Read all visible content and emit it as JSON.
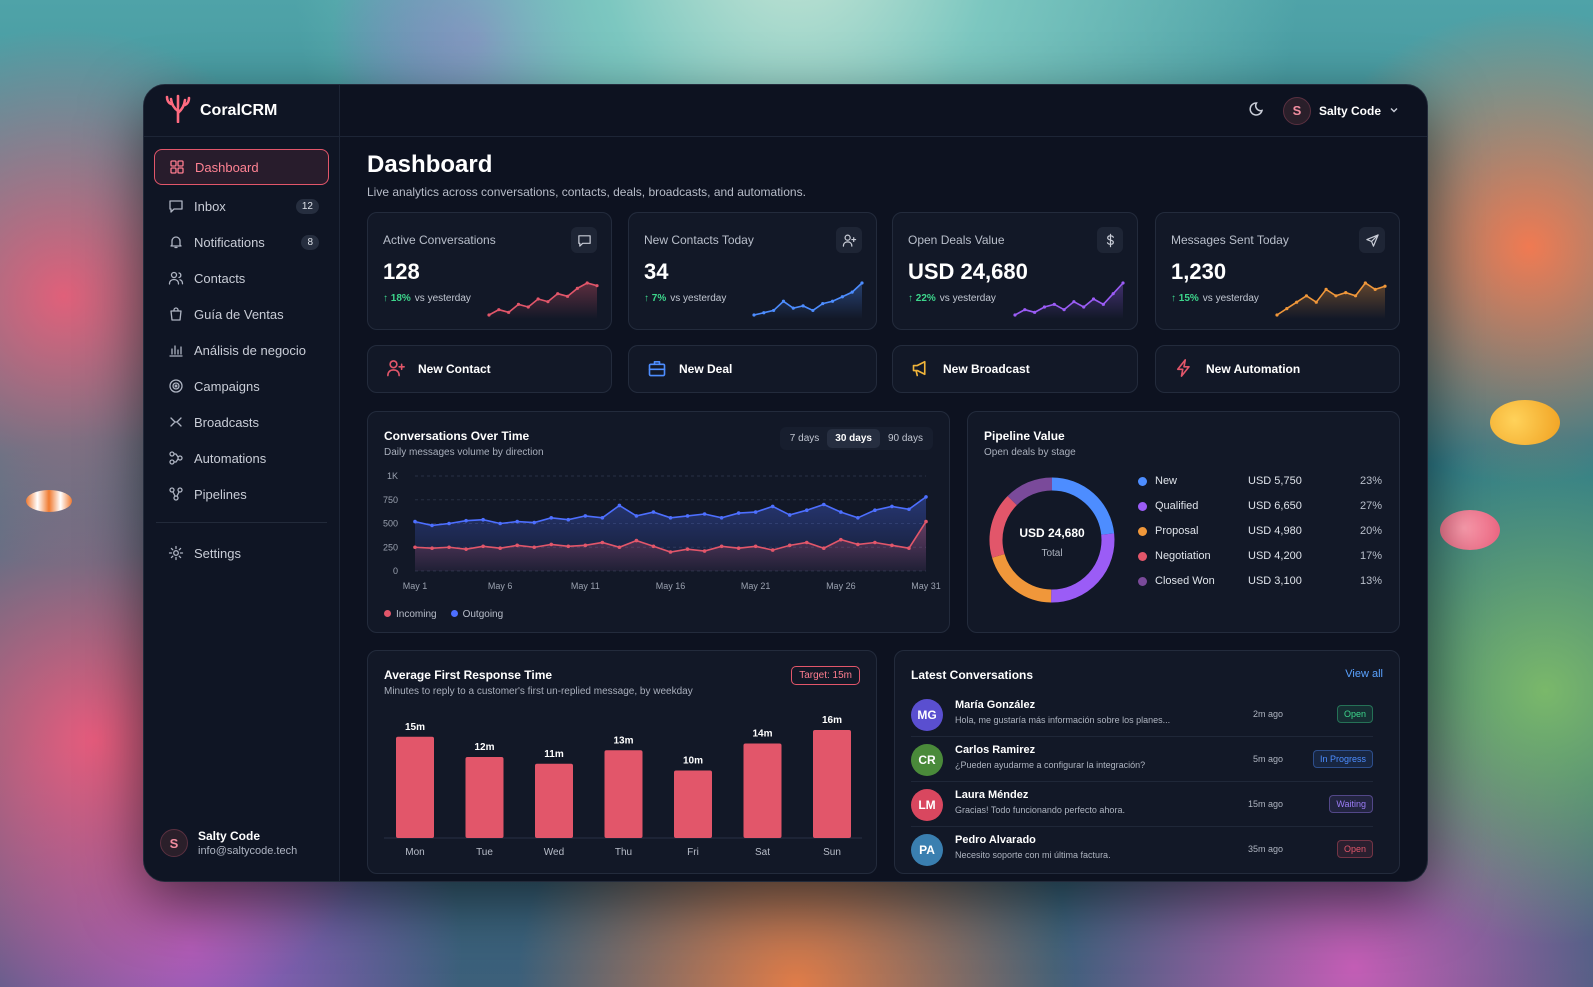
{
  "brand": {
    "name": "CoralCRM"
  },
  "sidebar": {
    "items": [
      {
        "label": "Dashboard",
        "active": true,
        "icon": "grid-icon"
      },
      {
        "label": "Inbox",
        "badge": "12",
        "icon": "message-icon"
      },
      {
        "label": "Notifications",
        "badge": "8",
        "icon": "bell-icon"
      },
      {
        "label": "Contacts",
        "icon": "users-icon"
      },
      {
        "label": "Guía de Ventas",
        "icon": "bag-icon"
      },
      {
        "label": "Análisis de negocio",
        "icon": "bar-chart-icon"
      },
      {
        "label": "Campaigns",
        "icon": "target-icon"
      },
      {
        "label": "Broadcasts",
        "icon": "broadcast-icon"
      },
      {
        "label": "Automations",
        "icon": "flow-icon"
      },
      {
        "label": "Pipelines",
        "icon": "pipeline-icon"
      }
    ],
    "settings_label": "Settings",
    "user": {
      "initial": "S",
      "name": "Salty Code",
      "email": "info@saltycode.tech"
    }
  },
  "topbar": {
    "user_initial": "S",
    "user_name": "Salty Code",
    "theme_icon": "moon-icon"
  },
  "page": {
    "title": "Dashboard",
    "subtitle": "Live analytics across conversations, contacts, deals, broadcasts, and automations."
  },
  "kpis": [
    {
      "label": "Active Conversations",
      "value": "128",
      "delta": "18%",
      "delta_text": "vs yesterday",
      "color": "#e2566a",
      "icon": "chat-icon",
      "spark": [
        3,
        4,
        3.5,
        5,
        4.5,
        6,
        5.5,
        7,
        6.5,
        8,
        9,
        8.5
      ]
    },
    {
      "label": "New Contacts Today",
      "value": "34",
      "delta": "7%",
      "delta_text": "vs yesterday",
      "color": "#4d8dff",
      "icon": "user-plus-icon",
      "spark": [
        2,
        2.5,
        3,
        5,
        3.5,
        4,
        3,
        4.5,
        5,
        6,
        7,
        9
      ]
    },
    {
      "label": "Open Deals Value",
      "value": "USD 24,680",
      "delta": "22%",
      "delta_text": "vs yesterday",
      "color": "#9b5cf6",
      "icon": "dollar-icon",
      "spark": [
        2,
        3,
        2.5,
        3.5,
        4,
        3,
        4.5,
        3.5,
        5,
        4,
        6,
        8
      ]
    },
    {
      "label": "Messages Sent Today",
      "value": "1,230",
      "delta": "15%",
      "delta_text": "vs yesterday",
      "color": "#f0973a",
      "icon": "send-icon",
      "spark": [
        2,
        3,
        4,
        5,
        4,
        6,
        5,
        5.5,
        5,
        7,
        6,
        6.5
      ]
    }
  ],
  "actions": [
    {
      "label": "New Contact",
      "icon": "user-plus-icon",
      "color": "#e2566a"
    },
    {
      "label": "New Deal",
      "icon": "briefcase-icon",
      "color": "#4d8dff"
    },
    {
      "label": "New Broadcast",
      "icon": "megaphone-icon",
      "color": "#f0b43a"
    },
    {
      "label": "New Automation",
      "icon": "bolt-icon",
      "color": "#e2566a"
    }
  ],
  "conversations_chart": {
    "title": "Conversations Over Time",
    "subtitle": "Daily messages volume by direction",
    "ranges": [
      "7 days",
      "30 days",
      "90 days"
    ],
    "selected_range": "30 days",
    "legend": [
      "Incoming",
      "Outgoing"
    ]
  },
  "pipeline": {
    "title": "Pipeline Value",
    "subtitle": "Open deals by stage",
    "total_value": "USD 24,680",
    "total_label": "Total"
  },
  "response": {
    "title": "Average First Response Time",
    "subtitle": "Minutes to reply to a customer's first un-replied message, by weekday",
    "target": "Target: 15m"
  },
  "latest": {
    "title": "Latest Conversations",
    "view_all": "View all",
    "rows": [
      {
        "initials": "MG",
        "name": "María González",
        "message": "Hola, me gustaría más información sobre los planes...",
        "time": "2m ago",
        "status": "Open",
        "avatar_color": "#5a4fd0",
        "status_color": "#3dd68c"
      },
      {
        "initials": "CR",
        "name": "Carlos Ramirez",
        "message": "¿Pueden ayudarme a configurar la integración?",
        "time": "5m ago",
        "status": "In Progress",
        "avatar_color": "#4a8a3a",
        "status_color": "#4d8dff"
      },
      {
        "initials": "LM",
        "name": "Laura Méndez",
        "message": "Gracias! Todo funcionando perfecto ahora.",
        "time": "15m ago",
        "status": "Waiting",
        "avatar_color": "#d9475f",
        "status_color": "#9b7cf6"
      },
      {
        "initials": "PA",
        "name": "Pedro Alvarado",
        "message": "Necesito soporte con mi última factura.",
        "time": "35m ago",
        "status": "Open",
        "avatar_color": "#3a7fb0",
        "status_color": "#e2566a"
      }
    ]
  },
  "chart_data": [
    {
      "type": "area",
      "title": "Conversations Over Time",
      "x": [
        "May 1",
        "May 2",
        "May 3",
        "May 4",
        "May 5",
        "May 6",
        "May 7",
        "May 8",
        "May 9",
        "May 10",
        "May 11",
        "May 12",
        "May 13",
        "May 14",
        "May 15",
        "May 16",
        "May 17",
        "May 18",
        "May 19",
        "May 20",
        "May 21",
        "May 22",
        "May 23",
        "May 24",
        "May 25",
        "May 26",
        "May 27",
        "May 28",
        "May 29",
        "May 30",
        "May 31"
      ],
      "x_tick_labels": [
        "May 1",
        "May 6",
        "May 11",
        "May 16",
        "May 21",
        "May 26",
        "May 31"
      ],
      "y_ticks": [
        "0",
        "250",
        "500",
        "750",
        "1K"
      ],
      "ylim": [
        0,
        1000
      ],
      "series": [
        {
          "name": "Incoming",
          "color": "#e2566a",
          "values": [
            250,
            240,
            250,
            230,
            260,
            240,
            270,
            250,
            280,
            260,
            270,
            300,
            250,
            320,
            260,
            200,
            230,
            210,
            260,
            240,
            260,
            220,
            270,
            300,
            240,
            330,
            280,
            300,
            270,
            240,
            520
          ]
        },
        {
          "name": "Outgoing",
          "color": "#4d6fff",
          "values": [
            520,
            480,
            500,
            530,
            540,
            500,
            520,
            510,
            560,
            540,
            580,
            560,
            690,
            580,
            620,
            560,
            580,
            600,
            560,
            610,
            620,
            680,
            590,
            640,
            700,
            620,
            560,
            640,
            680,
            650,
            780
          ]
        }
      ]
    },
    {
      "type": "pie",
      "title": "Pipeline Value",
      "categories": [
        "New",
        "Qualified",
        "Proposal",
        "Negotiation",
        "Closed Won"
      ],
      "values": [
        5750,
        6650,
        4980,
        4200,
        3100
      ],
      "value_labels": [
        "USD 5,750",
        "USD 6,650",
        "USD 4,980",
        "USD 4,200",
        "USD 3,100"
      ],
      "percent_labels": [
        "23%",
        "27%",
        "20%",
        "17%",
        "13%"
      ],
      "colors": [
        "#4d8dff",
        "#9b5cf6",
        "#f0973a",
        "#e2566a",
        "#7a4a9a"
      ]
    },
    {
      "type": "bar",
      "title": "Average First Response Time",
      "categories": [
        "Mon",
        "Tue",
        "Wed",
        "Thu",
        "Fri",
        "Sat",
        "Sun"
      ],
      "values": [
        15,
        12,
        11,
        13,
        10,
        14,
        16
      ],
      "data_labels": [
        "15m",
        "12m",
        "11m",
        "13m",
        "10m",
        "14m",
        "16m"
      ],
      "ylim": [
        0,
        16
      ],
      "color": "#e2566a"
    }
  ]
}
